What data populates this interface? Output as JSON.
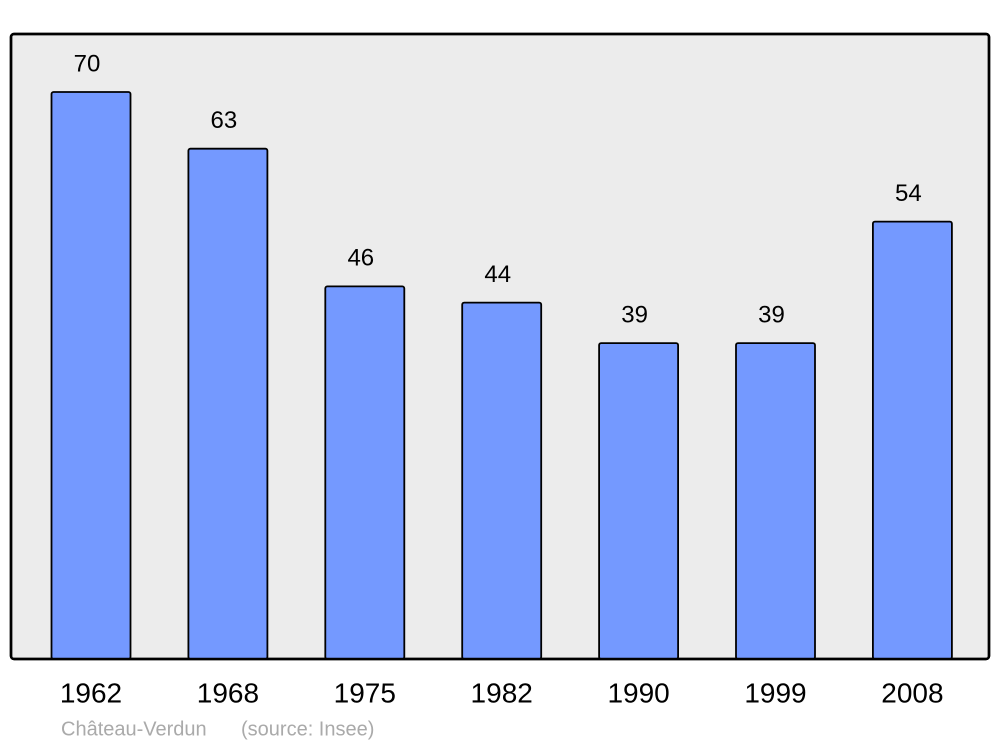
{
  "chart_data": {
    "type": "bar",
    "categories": [
      "1962",
      "1968",
      "1975",
      "1982",
      "1990",
      "1999",
      "2008"
    ],
    "values": [
      70,
      63,
      46,
      44,
      39,
      39,
      54
    ],
    "color": "#7499ff",
    "caption": "Château-Verdun",
    "source": "(source: Insee)"
  }
}
